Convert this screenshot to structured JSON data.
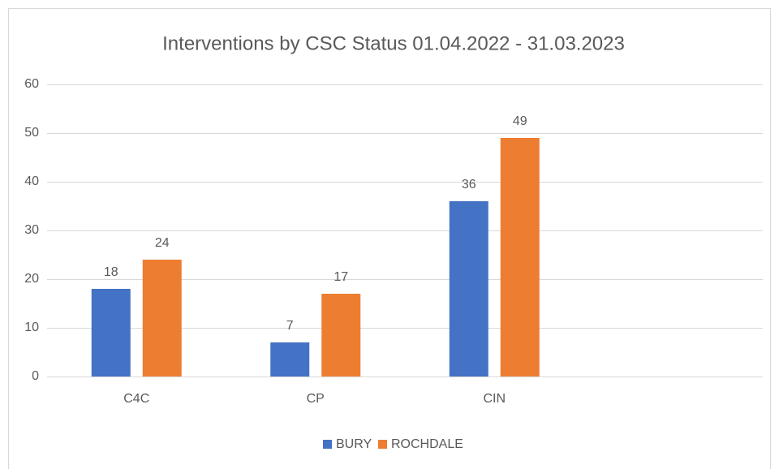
{
  "chart_data": {
    "type": "bar",
    "title": "Interventions  by CSC Status 01.04.2022  - 31.03.2023",
    "categories": [
      "C4C",
      "CP",
      "CIN",
      null
    ],
    "series": [
      {
        "name": "BURY",
        "color": "#4472c4",
        "values": [
          18,
          7,
          36,
          null
        ]
      },
      {
        "name": "ROCHDALE",
        "color": "#ed7d31",
        "values": [
          24,
          17,
          49,
          null
        ]
      }
    ],
    "ylim": [
      0,
      60
    ],
    "yticks": [
      0,
      10,
      20,
      30,
      40,
      50,
      60
    ],
    "grid": true,
    "legend": "bottom"
  }
}
